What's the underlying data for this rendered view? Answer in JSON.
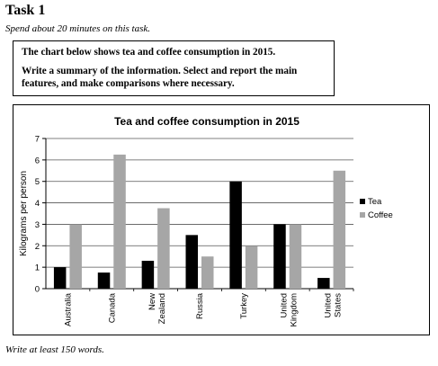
{
  "task": {
    "title": "Task 1",
    "instruction": "Spend about 20 minutes on this task.",
    "prompt_line1": "The chart below shows tea and coffee consumption in 2015.",
    "prompt_line2": "Write a summary of the information. Select and report the main features, and make comparisons where necessary.",
    "footer": "Write at least 150 words."
  },
  "chart_data": {
    "type": "bar",
    "title": "Tea and coffee consumption in 2015",
    "xlabel": "",
    "ylabel": "Kilograms per person",
    "ylim": [
      0,
      7
    ],
    "yticks": [
      "0",
      "1",
      "2",
      "3",
      "4",
      "5",
      "6",
      "7"
    ],
    "categories": [
      [
        "Australia"
      ],
      [
        "Canada"
      ],
      [
        "New",
        "Zealand"
      ],
      [
        "Russia"
      ],
      [
        "Turkey"
      ],
      [
        "United",
        "Kingdom"
      ],
      [
        "United",
        "States"
      ]
    ],
    "series": [
      {
        "name": "Tea",
        "color": "#000000",
        "values": [
          1.0,
          0.75,
          1.3,
          2.5,
          5.0,
          3.0,
          0.5
        ]
      },
      {
        "name": "Coffee",
        "color": "#a6a6a6",
        "values": [
          3.0,
          6.25,
          3.75,
          1.5,
          2.0,
          3.0,
          5.5
        ]
      }
    ],
    "grid": true,
    "legend": "right"
  }
}
